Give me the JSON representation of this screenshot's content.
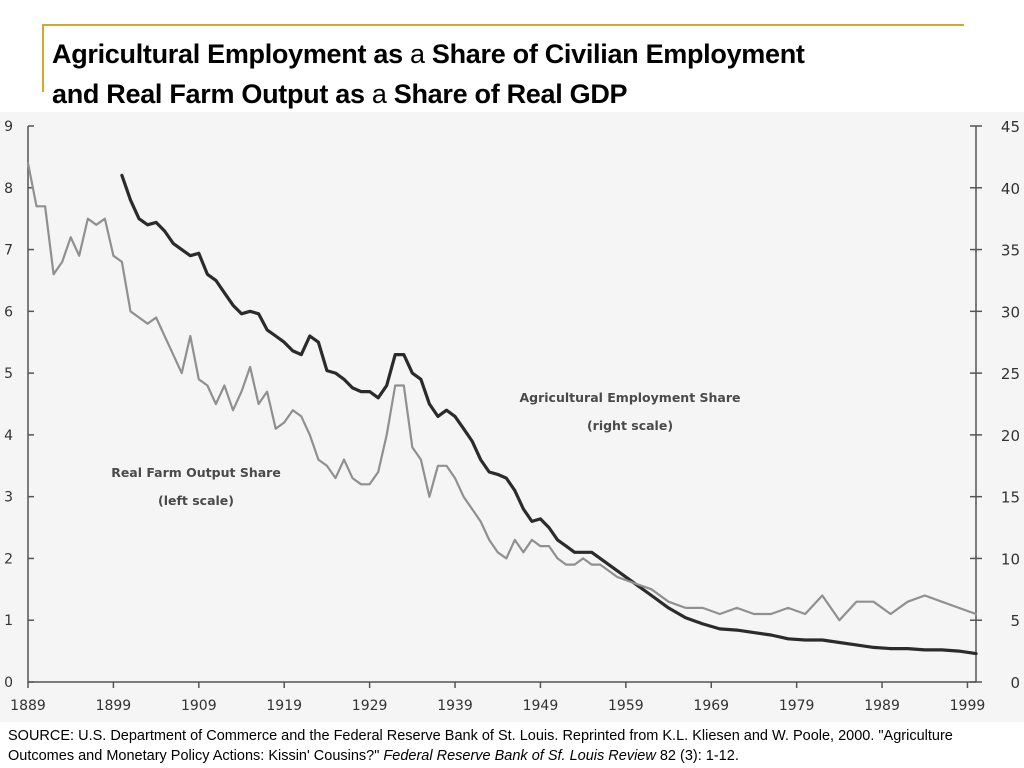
{
  "page": {
    "title_parts": [
      {
        "text": "Agricultural Employment as ",
        "weight": "bold"
      },
      {
        "text": "a",
        "weight": "normal"
      },
      {
        "text": " Share of Civilian Employment",
        "weight": "bold"
      },
      {
        "text": "and Real Farm Output as ",
        "weight": "bold"
      },
      {
        "text": "a",
        "weight": "normal"
      },
      {
        "text": " Share of Real GDP",
        "weight": "bold"
      }
    ],
    "source_prefix": "SOURCE: U.S. Department of Commerce and the Federal Reserve Bank of St. Louis.   Reprinted from K.L. Kliesen and W. Poole, 2000. \"Agriculture Outcomes and Monetary Policy Actions: Kissin' Cousins?\" ",
    "source_journal": "Federal Reserve Bank of Sf. Louis Review",
    "source_suffix": " 82 (3): 1-12.",
    "accent_color": "#d4a82a"
  },
  "chart_data": {
    "type": "line",
    "x_ticks": [
      1889,
      1899,
      1909,
      1919,
      1929,
      1939,
      1949,
      1959,
      1969,
      1979,
      1989,
      1999
    ],
    "xlim": [
      1889,
      2000
    ],
    "left_axis": {
      "ticks": [
        0,
        1,
        2,
        3,
        4,
        5,
        6,
        7,
        8,
        9
      ],
      "ylim": [
        0,
        9
      ]
    },
    "right_axis": {
      "ticks": [
        0,
        5,
        10,
        15,
        20,
        25,
        30,
        35,
        40,
        45
      ],
      "ylim": [
        0,
        45
      ]
    },
    "annotations": [
      {
        "lines": [
          "Agricultural Employment Share",
          "(right scale)"
        ],
        "series": "employment"
      },
      {
        "lines": [
          "Real Farm Output Share",
          "(left scale)"
        ],
        "series": "output"
      }
    ],
    "series": [
      {
        "id": "employment",
        "axis": "right",
        "color": "#2b2b2b",
        "x": [
          1900,
          1901,
          1902,
          1903,
          1904,
          1905,
          1906,
          1907,
          1908,
          1909,
          1910,
          1911,
          1912,
          1913,
          1914,
          1915,
          1916,
          1917,
          1918,
          1919,
          1920,
          1921,
          1922,
          1923,
          1924,
          1925,
          1926,
          1927,
          1928,
          1929,
          1930,
          1931,
          1932,
          1933,
          1934,
          1935,
          1936,
          1937,
          1938,
          1939,
          1940,
          1941,
          1942,
          1943,
          1944,
          1945,
          1946,
          1947,
          1948,
          1949,
          1950,
          1951,
          1952,
          1953,
          1954,
          1955,
          1956,
          1958,
          1960,
          1962,
          1964,
          1966,
          1968,
          1970,
          1972,
          1974,
          1976,
          1978,
          1980,
          1982,
          1984,
          1986,
          1988,
          1990,
          1992,
          1994,
          1996,
          1998,
          2000
        ],
        "y": [
          41,
          39,
          37.5,
          37,
          37.2,
          36.5,
          35.5,
          35,
          34.5,
          34.7,
          33,
          32.5,
          31.5,
          30.5,
          29.8,
          30,
          29.8,
          28.5,
          28,
          27.5,
          26.8,
          26.5,
          28,
          27.5,
          25.2,
          25,
          24.5,
          23.8,
          23.5,
          23.5,
          23,
          24,
          26.5,
          26.5,
          25,
          24.5,
          22.5,
          21.5,
          22,
          21.5,
          20.5,
          19.5,
          18,
          17,
          16.8,
          16.5,
          15.5,
          14,
          13,
          13.2,
          12.5,
          11.5,
          11,
          10.5,
          10.5,
          10.5,
          10,
          9,
          8,
          7,
          6,
          5.2,
          4.7,
          4.3,
          4.2,
          4,
          3.8,
          3.5,
          3.4,
          3.4,
          3.2,
          3,
          2.8,
          2.7,
          2.7,
          2.6,
          2.6,
          2.5,
          2.3
        ]
      },
      {
        "id": "output",
        "axis": "left",
        "color": "#909090",
        "x": [
          1889,
          1890,
          1891,
          1892,
          1893,
          1894,
          1895,
          1896,
          1897,
          1898,
          1899,
          1900,
          1901,
          1902,
          1903,
          1904,
          1905,
          1906,
          1907,
          1908,
          1909,
          1910,
          1911,
          1912,
          1913,
          1914,
          1915,
          1916,
          1917,
          1918,
          1919,
          1920,
          1921,
          1922,
          1923,
          1924,
          1925,
          1926,
          1927,
          1928,
          1929,
          1930,
          1931,
          1932,
          1933,
          1934,
          1935,
          1936,
          1937,
          1938,
          1939,
          1940,
          1941,
          1942,
          1943,
          1944,
          1945,
          1946,
          1947,
          1948,
          1949,
          1950,
          1951,
          1952,
          1953,
          1954,
          1955,
          1956,
          1958,
          1960,
          1962,
          1964,
          1966,
          1968,
          1970,
          1972,
          1974,
          1976,
          1978,
          1980,
          1982,
          1984,
          1986,
          1988,
          1990,
          1992,
          1994,
          1996,
          1998,
          2000
        ],
        "y": [
          8.4,
          7.7,
          7.7,
          6.6,
          6.8,
          7.2,
          6.9,
          7.5,
          7.4,
          7.5,
          6.9,
          6.8,
          6.0,
          5.9,
          5.8,
          5.9,
          5.6,
          5.3,
          5.0,
          5.6,
          4.9,
          4.8,
          4.5,
          4.8,
          4.4,
          4.7,
          5.1,
          4.5,
          4.7,
          4.1,
          4.2,
          4.4,
          4.3,
          4.0,
          3.6,
          3.5,
          3.3,
          3.6,
          3.3,
          3.2,
          3.2,
          3.4,
          4.0,
          4.8,
          4.8,
          3.8,
          3.6,
          3.0,
          3.5,
          3.5,
          3.3,
          3.0,
          2.8,
          2.6,
          2.3,
          2.1,
          2.0,
          2.3,
          2.1,
          2.3,
          2.2,
          2.2,
          2.0,
          1.9,
          1.9,
          2.0,
          1.9,
          1.9,
          1.7,
          1.6,
          1.5,
          1.3,
          1.2,
          1.2,
          1.1,
          1.2,
          1.1,
          1.1,
          1.2,
          1.1,
          1.4,
          1.0,
          1.3,
          1.3,
          1.1,
          1.3,
          1.4,
          1.3,
          1.2,
          1.1
        ]
      }
    ]
  }
}
